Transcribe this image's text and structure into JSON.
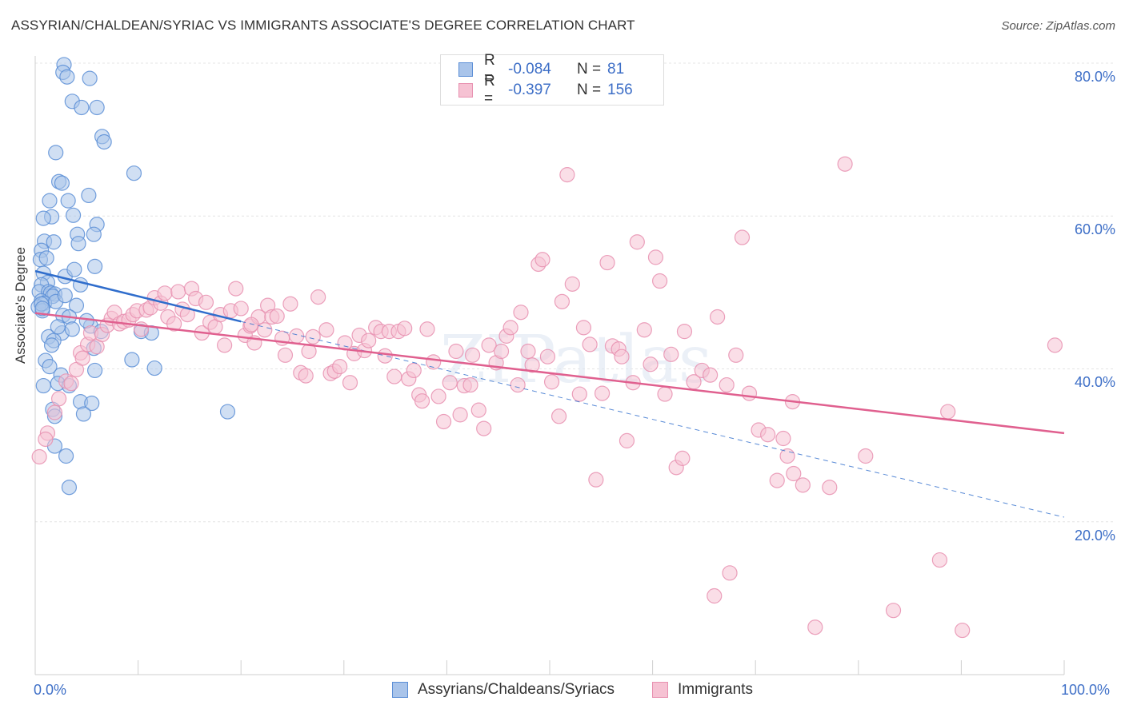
{
  "title": "ASSYRIAN/CHALDEAN/SYRIAC VS IMMIGRANTS ASSOCIATE'S DEGREE CORRELATION CHART",
  "source": "Source: ZipAtlas.com",
  "legend": {
    "r_label": "R =",
    "n_label": "N =",
    "rows": [
      {
        "r": "-0.084",
        "n": "81"
      },
      {
        "r": "-0.397",
        "n": "156"
      }
    ]
  },
  "watermark": "ZIPatlas",
  "colors": {
    "blue_fill": "#a9c4ea",
    "blue_stroke": "#5b8ed6",
    "blue_line": "#2f6dcc",
    "pink_fill": "#f6c2d3",
    "pink_stroke": "#e891b0",
    "pink_line": "#e0608f",
    "tick_text": "#3e6fc7"
  },
  "chart_data": {
    "type": "scatter",
    "title": "ASSYRIAN/CHALDEAN/SYRIAC VS IMMIGRANTS ASSOCIATE'S DEGREE CORRELATION CHART",
    "xlabel": "",
    "ylabel": "Associate's Degree",
    "xlim": [
      0,
      100
    ],
    "ylim": [
      0,
      82
    ],
    "x_tick_labels": [
      "0.0%",
      "100.0%"
    ],
    "y_ticks": [
      20,
      40,
      60,
      80
    ],
    "y_tick_labels": [
      "20.0%",
      "40.0%",
      "60.0%",
      "80.0%"
    ],
    "grid": true,
    "legend_position": "top-center",
    "series": [
      {
        "name": "Assyrians/Chaldeans/Syriacs",
        "R": -0.084,
        "N": 81,
        "trend": {
          "x": [
            0,
            20
          ],
          "y": [
            52.8,
            46.2
          ]
        },
        "points": [
          [
            2.8,
            79.8
          ],
          [
            2.7,
            78.8
          ],
          [
            3.1,
            78.2
          ],
          [
            5.3,
            78
          ],
          [
            3.6,
            75
          ],
          [
            4.5,
            74.2
          ],
          [
            6.0,
            74.2
          ],
          [
            6.5,
            70.4
          ],
          [
            6.7,
            69.7
          ],
          [
            2.0,
            68.3
          ],
          [
            9.6,
            65.6
          ],
          [
            2.3,
            64.5
          ],
          [
            2.6,
            64.3
          ],
          [
            1.4,
            62
          ],
          [
            3.2,
            62
          ],
          [
            5.2,
            62.7
          ],
          [
            1.6,
            59.9
          ],
          [
            3.7,
            60.1
          ],
          [
            0.8,
            59.7
          ],
          [
            6.0,
            58.9
          ],
          [
            4.1,
            57.6
          ],
          [
            5.7,
            57.6
          ],
          [
            0.9,
            56.7
          ],
          [
            1.8,
            56.6
          ],
          [
            4.2,
            56.4
          ],
          [
            0.6,
            55.5
          ],
          [
            0.5,
            54.3
          ],
          [
            5.8,
            53.4
          ],
          [
            0.8,
            52.5
          ],
          [
            2.9,
            52.1
          ],
          [
            1.2,
            51.3
          ],
          [
            0.6,
            51
          ],
          [
            4.4,
            51
          ],
          [
            0.4,
            50.1
          ],
          [
            1.3,
            50.1
          ],
          [
            1.5,
            49.9
          ],
          [
            1.9,
            49.8
          ],
          [
            1.7,
            49.5
          ],
          [
            0.6,
            48.9
          ],
          [
            0.9,
            48.6
          ],
          [
            2.0,
            48.8
          ],
          [
            4.0,
            48.3
          ],
          [
            0.3,
            48.1
          ],
          [
            0.7,
            47.6
          ],
          [
            2.7,
            47
          ],
          [
            3.3,
            46.8
          ],
          [
            5.4,
            45.6
          ],
          [
            2.6,
            44.7
          ],
          [
            1.3,
            44.2
          ],
          [
            1.8,
            43.7
          ],
          [
            3.6,
            45.2
          ],
          [
            6.4,
            44.9
          ],
          [
            10.3,
            44.9
          ],
          [
            11.3,
            44.7
          ],
          [
            1.6,
            43.1
          ],
          [
            5.7,
            42.7
          ],
          [
            1.0,
            41.1
          ],
          [
            9.4,
            41.2
          ],
          [
            11.6,
            40.1
          ],
          [
            1.4,
            40.3
          ],
          [
            5.8,
            39.8
          ],
          [
            2.5,
            39.2
          ],
          [
            0.8,
            37.8
          ],
          [
            2.2,
            38.1
          ],
          [
            3.3,
            37.8
          ],
          [
            4.4,
            35.7
          ],
          [
            5.5,
            35.5
          ],
          [
            1.7,
            34.7
          ],
          [
            1.9,
            33.8
          ],
          [
            4.7,
            34.1
          ],
          [
            18.7,
            34.4
          ],
          [
            1.9,
            29.9
          ],
          [
            3.0,
            28.6
          ],
          [
            3.3,
            24.5
          ],
          [
            0.6,
            48.5
          ],
          [
            2.9,
            49.6
          ],
          [
            2.2,
            45.5
          ],
          [
            5.0,
            46.3
          ],
          [
            1.1,
            54.5
          ],
          [
            3.8,
            53.0
          ],
          [
            0.7,
            47.9
          ]
        ]
      },
      {
        "name": "Immigrants",
        "R": -0.397,
        "N": 156,
        "trend": {
          "x": [
            0,
            100
          ],
          "y": [
            47.3,
            31.6
          ]
        },
        "points": [
          [
            0.4,
            28.5
          ],
          [
            1.2,
            31.6
          ],
          [
            1.0,
            30.8
          ],
          [
            1.9,
            34.3
          ],
          [
            2.3,
            36.1
          ],
          [
            3.0,
            38.4
          ],
          [
            3.5,
            38.1
          ],
          [
            4.0,
            39.9
          ],
          [
            4.4,
            42.1
          ],
          [
            4.6,
            41.4
          ],
          [
            5.1,
            43.2
          ],
          [
            5.4,
            44.7
          ],
          [
            6.0,
            42.9
          ],
          [
            6.5,
            44.5
          ],
          [
            7.0,
            45.7
          ],
          [
            7.4,
            46.6
          ],
          [
            7.7,
            47.4
          ],
          [
            8.2,
            45.9
          ],
          [
            8.6,
            46.2
          ],
          [
            9.1,
            46.4
          ],
          [
            9.5,
            47.1
          ],
          [
            9.9,
            47.6
          ],
          [
            10.3,
            45.2
          ],
          [
            10.8,
            47.7
          ],
          [
            11.2,
            48.0
          ],
          [
            11.6,
            49.3
          ],
          [
            12.2,
            48.6
          ],
          [
            12.6,
            49.9
          ],
          [
            12.9,
            46.8
          ],
          [
            13.5,
            45.9
          ],
          [
            13.9,
            50.1
          ],
          [
            14.3,
            47.8
          ],
          [
            14.8,
            47.1
          ],
          [
            15.2,
            50.5
          ],
          [
            15.6,
            49.2
          ],
          [
            16.2,
            44.7
          ],
          [
            16.6,
            48.7
          ],
          [
            17.0,
            46.1
          ],
          [
            17.5,
            45.5
          ],
          [
            18.0,
            47.1
          ],
          [
            18.4,
            43.1
          ],
          [
            19.0,
            47.6
          ],
          [
            19.5,
            50.5
          ],
          [
            20.0,
            47.9
          ],
          [
            20.4,
            44.4
          ],
          [
            20.9,
            45.6
          ],
          [
            21.3,
            43.4
          ],
          [
            21.7,
            46.8
          ],
          [
            22.3,
            45.1
          ],
          [
            22.6,
            48.3
          ],
          [
            23.0,
            46.8
          ],
          [
            23.5,
            46.9
          ],
          [
            24.0,
            44.0
          ],
          [
            24.3,
            41.8
          ],
          [
            24.8,
            48.5
          ],
          [
            25.4,
            44.3
          ],
          [
            25.8,
            39.5
          ],
          [
            26.3,
            39.1
          ],
          [
            26.6,
            42.3
          ],
          [
            27.0,
            44.2
          ],
          [
            27.5,
            49.4
          ],
          [
            28.3,
            45.1
          ],
          [
            28.7,
            39.4
          ],
          [
            29.1,
            39.7
          ],
          [
            29.6,
            40.3
          ],
          [
            30.1,
            43.4
          ],
          [
            30.6,
            38.2
          ],
          [
            31.0,
            42.0
          ],
          [
            31.5,
            44.4
          ],
          [
            32.0,
            42.4
          ],
          [
            32.4,
            43.7
          ],
          [
            33.1,
            45.4
          ],
          [
            33.6,
            44.9
          ],
          [
            34.0,
            41.7
          ],
          [
            34.4,
            44.9
          ],
          [
            34.9,
            39.0
          ],
          [
            35.3,
            44.9
          ],
          [
            35.9,
            45.3
          ],
          [
            36.3,
            38.7
          ],
          [
            36.8,
            39.8
          ],
          [
            37.3,
            36.6
          ],
          [
            37.6,
            35.8
          ],
          [
            38.1,
            45.2
          ],
          [
            38.7,
            40.9
          ],
          [
            39.2,
            36.4
          ],
          [
            39.7,
            33.1
          ],
          [
            40.3,
            38.2
          ],
          [
            40.9,
            42.3
          ],
          [
            41.3,
            34.0
          ],
          [
            41.7,
            37.8
          ],
          [
            42.3,
            37.9
          ],
          [
            42.5,
            41.8
          ],
          [
            43.1,
            34.6
          ],
          [
            43.6,
            32.2
          ],
          [
            44.1,
            43.1
          ],
          [
            44.8,
            40.8
          ],
          [
            45.3,
            42.3
          ],
          [
            45.8,
            44.3
          ],
          [
            46.2,
            45.4
          ],
          [
            46.9,
            37.9
          ],
          [
            47.2,
            47.4
          ],
          [
            47.9,
            42.3
          ],
          [
            48.3,
            40.5
          ],
          [
            48.9,
            53.7
          ],
          [
            49.3,
            54.3
          ],
          [
            49.8,
            41.6
          ],
          [
            50.2,
            38.3
          ],
          [
            50.9,
            33.8
          ],
          [
            51.2,
            48.8
          ],
          [
            51.7,
            65.4
          ],
          [
            52.2,
            51.1
          ],
          [
            52.9,
            36.7
          ],
          [
            53.3,
            45.4
          ],
          [
            53.9,
            43.2
          ],
          [
            54.5,
            25.5
          ],
          [
            55.1,
            36.8
          ],
          [
            55.6,
            53.9
          ],
          [
            56.1,
            43.0
          ],
          [
            56.7,
            42.6
          ],
          [
            57.0,
            41.6
          ],
          [
            57.5,
            30.6
          ],
          [
            58.1,
            38.2
          ],
          [
            58.5,
            56.6
          ],
          [
            59.2,
            45.1
          ],
          [
            59.8,
            40.6
          ],
          [
            60.3,
            54.6
          ],
          [
            60.7,
            51.5
          ],
          [
            61.2,
            36.7
          ],
          [
            61.8,
            41.9
          ],
          [
            62.3,
            27.1
          ],
          [
            62.9,
            28.3
          ],
          [
            63.1,
            44.9
          ],
          [
            64.0,
            38.3
          ],
          [
            64.8,
            39.8
          ],
          [
            65.6,
            39.2
          ],
          [
            66.3,
            46.8
          ],
          [
            67.2,
            37.9
          ],
          [
            67.5,
            13.3
          ],
          [
            68.1,
            41.8
          ],
          [
            68.7,
            57.2
          ],
          [
            69.4,
            36.8
          ],
          [
            70.3,
            32.0
          ],
          [
            71.2,
            31.4
          ],
          [
            72.1,
            25.4
          ],
          [
            72.7,
            30.9
          ],
          [
            73.1,
            28.6
          ],
          [
            73.6,
            35.7
          ],
          [
            73.7,
            26.3
          ],
          [
            74.6,
            24.8
          ],
          [
            75.8,
            6.2
          ],
          [
            77.2,
            24.5
          ],
          [
            78.7,
            66.8
          ],
          [
            80.7,
            28.6
          ],
          [
            83.4,
            8.4
          ],
          [
            87.9,
            15.0
          ],
          [
            88.7,
            34.4
          ],
          [
            90.1,
            5.8
          ],
          [
            99.1,
            43.1
          ],
          [
            66.0,
            10.3
          ],
          [
            21.0,
            45.8
          ]
        ]
      }
    ]
  },
  "bottom_legend": [
    {
      "label": "Assyrians/Chaldeans/Syriacs"
    },
    {
      "label": "Immigrants"
    }
  ]
}
